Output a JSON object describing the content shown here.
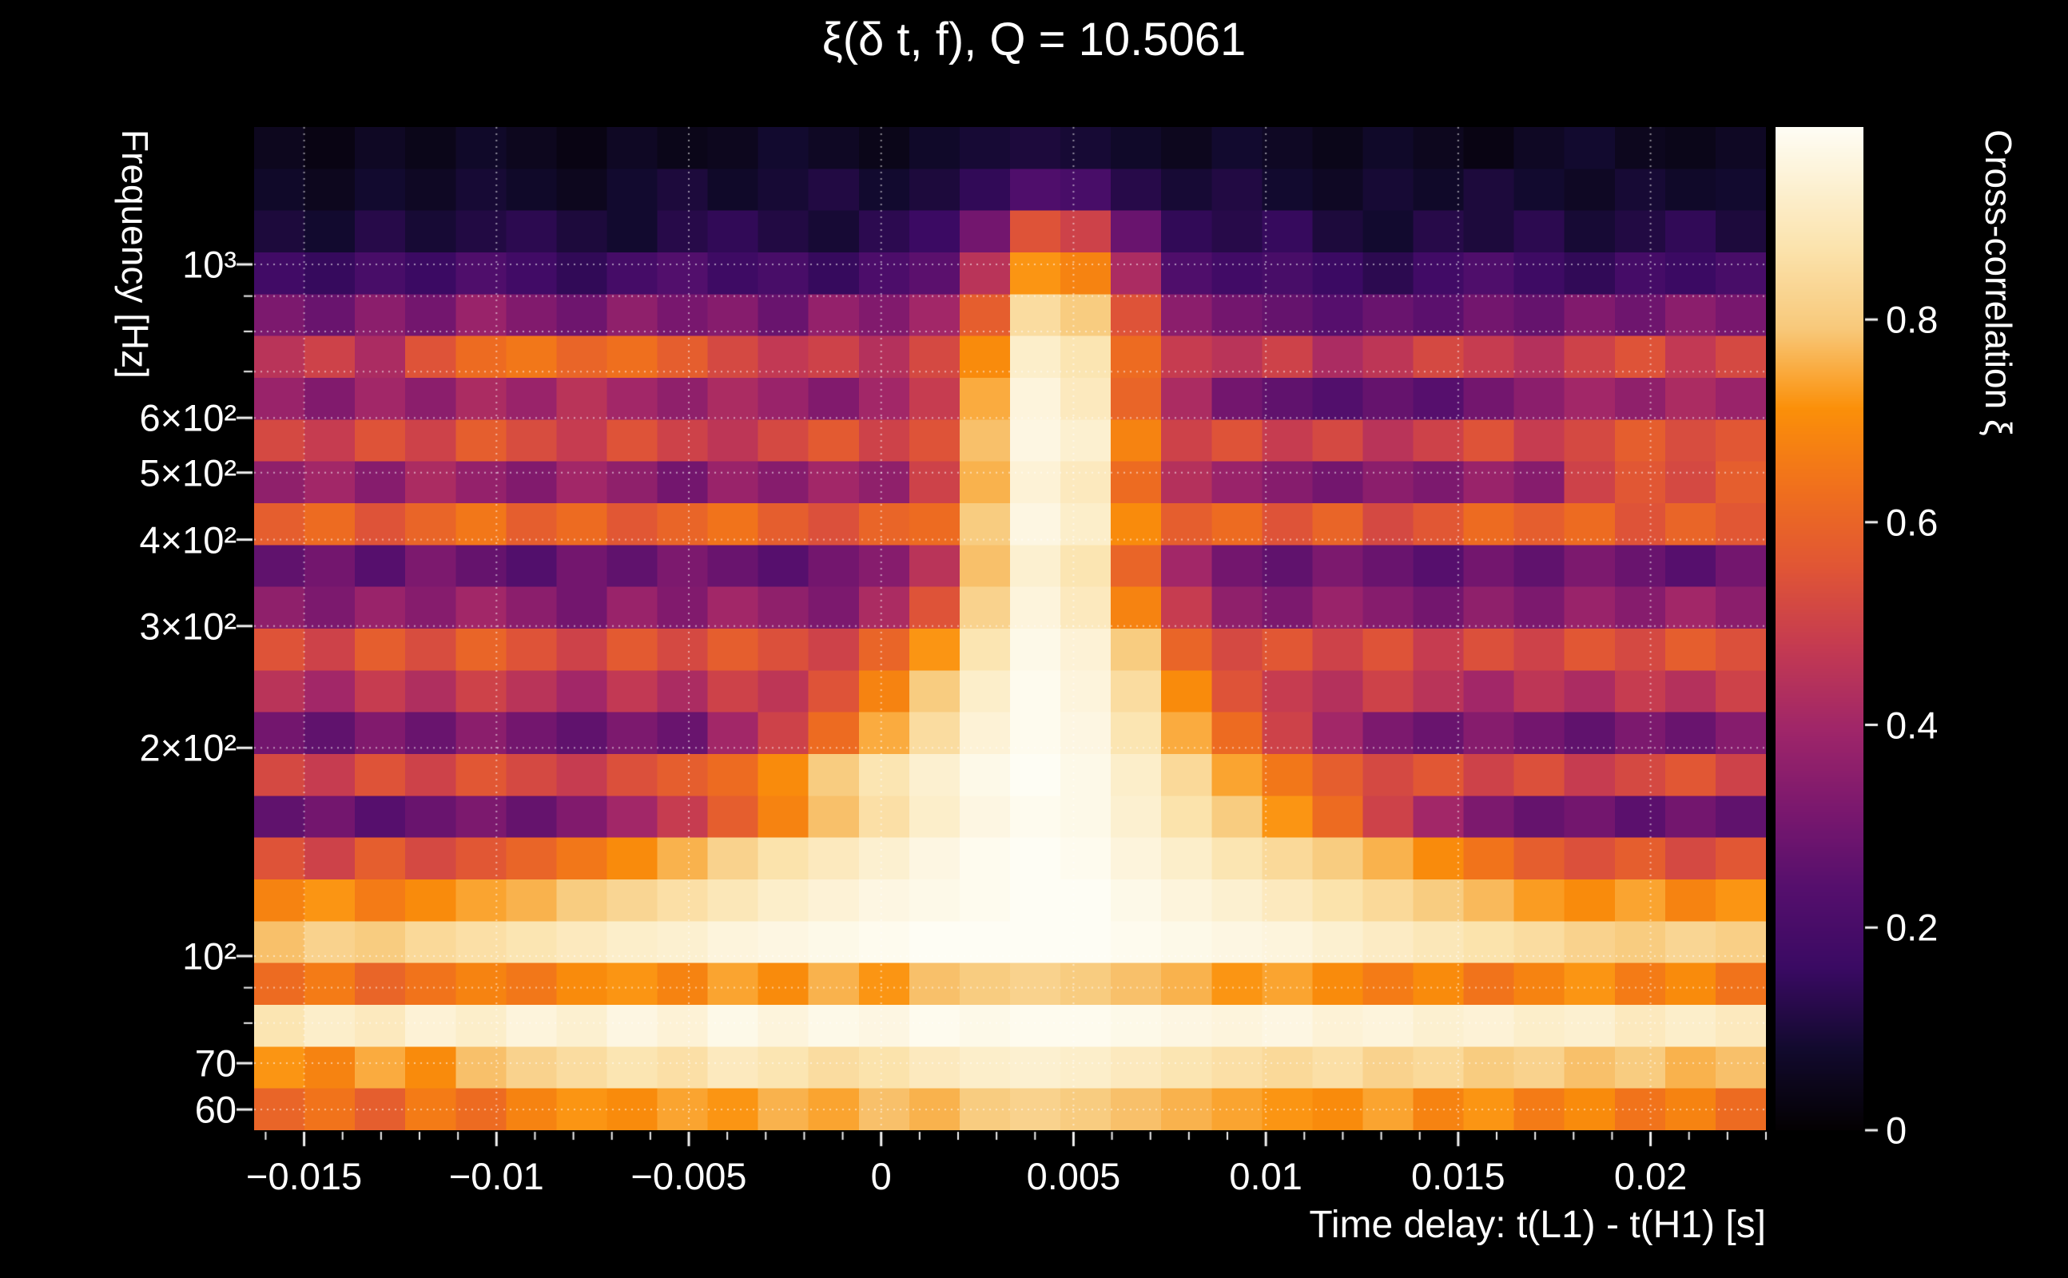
{
  "title": "ξ(δ t, f), Q = 10.5061",
  "colors": {
    "background": "#000000",
    "text": "#ffffff",
    "grid": "rgba(255,255,255,0.55)"
  },
  "axes": {
    "x": {
      "label": "Time delay: t(L1) - t(H1) [s]",
      "min": -0.0163,
      "max": 0.023,
      "minor_step": 0.001,
      "ticks": [
        {
          "v": -0.015,
          "label": "−0.015"
        },
        {
          "v": -0.01,
          "label": "−0.01"
        },
        {
          "v": -0.005,
          "label": "−0.005"
        },
        {
          "v": 0,
          "label": "0"
        },
        {
          "v": 0.005,
          "label": "0.005"
        },
        {
          "v": 0.01,
          "label": "0.01"
        },
        {
          "v": 0.015,
          "label": "0.015"
        },
        {
          "v": 0.02,
          "label": "0.02"
        }
      ]
    },
    "y": {
      "label": "Frequency [Hz]",
      "scale": "log",
      "min": 56,
      "max": 1580,
      "ticks": [
        {
          "v": 1000,
          "label": "10³"
        },
        {
          "v": 900,
          "label": ""
        },
        {
          "v": 800,
          "label": ""
        },
        {
          "v": 700,
          "label": ""
        },
        {
          "v": 600,
          "label": "6×10²"
        },
        {
          "v": 500,
          "label": "5×10²"
        },
        {
          "v": 400,
          "label": "4×10²"
        },
        {
          "v": 300,
          "label": "3×10²"
        },
        {
          "v": 200,
          "label": "2×10²"
        },
        {
          "v": 100,
          "label": "10²"
        },
        {
          "v": 90,
          "label": ""
        },
        {
          "v": 80,
          "label": ""
        },
        {
          "v": 70,
          "label": "70"
        },
        {
          "v": 60,
          "label": "60"
        }
      ]
    }
  },
  "colorbar": {
    "label": "Cross-correlation ξ",
    "min": 0,
    "max": 0.99,
    "ticks": [
      {
        "v": 0,
        "label": "0"
      },
      {
        "v": 0.2,
        "label": "0.2"
      },
      {
        "v": 0.4,
        "label": "0.4"
      },
      {
        "v": 0.6,
        "label": "0.6"
      },
      {
        "v": 0.8,
        "label": "0.8"
      }
    ]
  },
  "colormap": [
    [
      0.0,
      "#040103"
    ],
    [
      0.08,
      "#120a2e"
    ],
    [
      0.16,
      "#3a0a63"
    ],
    [
      0.24,
      "#550f6d"
    ],
    [
      0.32,
      "#7b186e"
    ],
    [
      0.4,
      "#a02669"
    ],
    [
      0.48,
      "#c43a52"
    ],
    [
      0.56,
      "#e05536"
    ],
    [
      0.64,
      "#f0701d"
    ],
    [
      0.72,
      "#fb9009"
    ],
    [
      0.8,
      "#f8c97b"
    ],
    [
      0.88,
      "#fbe3ad"
    ],
    [
      1.0,
      "#fefdf4"
    ]
  ],
  "chart_data": {
    "type": "heatmap",
    "title": "ξ(δ t, f), Q = 10.5061",
    "q_value": 10.5061,
    "xlabel": "Time delay: t(L1) - t(H1) [s]",
    "ylabel": "Frequency [Hz]",
    "zlabel": "Cross-correlation ξ",
    "x_range": [
      -0.0163,
      0.023
    ],
    "y_range": [
      56,
      1580
    ],
    "y_scale": "log",
    "z_range": [
      0,
      0.99
    ],
    "rows": 24,
    "cols": 30,
    "row_order": "top-to-bottom (high frequency first, log-spaced 1580→56 Hz)",
    "col_order": "left-to-right (time delay -0.0163 s → 0.023 s)",
    "values": [
      [
        0.05,
        0.03,
        0.06,
        0.04,
        0.07,
        0.05,
        0.03,
        0.06,
        0.04,
        0.05,
        0.08,
        0.06,
        0.04,
        0.07,
        0.09,
        0.1,
        0.09,
        0.07,
        0.05,
        0.08,
        0.06,
        0.04,
        0.07,
        0.05,
        0.03,
        0.06,
        0.08,
        0.05,
        0.04,
        0.06
      ],
      [
        0.07,
        0.05,
        0.08,
        0.06,
        0.09,
        0.07,
        0.05,
        0.08,
        0.1,
        0.07,
        0.09,
        0.11,
        0.08,
        0.1,
        0.14,
        0.22,
        0.2,
        0.12,
        0.09,
        0.11,
        0.08,
        0.06,
        0.09,
        0.07,
        0.1,
        0.08,
        0.06,
        0.09,
        0.07,
        0.08
      ],
      [
        0.1,
        0.08,
        0.12,
        0.09,
        0.11,
        0.13,
        0.1,
        0.08,
        0.12,
        0.14,
        0.11,
        0.09,
        0.13,
        0.16,
        0.3,
        0.55,
        0.5,
        0.28,
        0.14,
        0.12,
        0.15,
        0.1,
        0.08,
        0.12,
        0.1,
        0.13,
        0.09,
        0.11,
        0.14,
        0.1
      ],
      [
        0.18,
        0.15,
        0.2,
        0.16,
        0.22,
        0.18,
        0.14,
        0.19,
        0.23,
        0.17,
        0.2,
        0.15,
        0.21,
        0.25,
        0.45,
        0.72,
        0.68,
        0.42,
        0.22,
        0.18,
        0.2,
        0.16,
        0.13,
        0.18,
        0.22,
        0.17,
        0.14,
        0.19,
        0.16,
        0.2
      ],
      [
        0.32,
        0.28,
        0.35,
        0.3,
        0.38,
        0.33,
        0.29,
        0.36,
        0.31,
        0.34,
        0.28,
        0.37,
        0.33,
        0.4,
        0.58,
        0.85,
        0.8,
        0.55,
        0.35,
        0.3,
        0.27,
        0.24,
        0.28,
        0.25,
        0.3,
        0.27,
        0.33,
        0.29,
        0.35,
        0.31
      ],
      [
        0.45,
        0.5,
        0.42,
        0.55,
        0.62,
        0.65,
        0.6,
        0.63,
        0.58,
        0.52,
        0.47,
        0.5,
        0.44,
        0.52,
        0.7,
        0.92,
        0.88,
        0.62,
        0.48,
        0.45,
        0.5,
        0.42,
        0.46,
        0.52,
        0.48,
        0.44,
        0.5,
        0.55,
        0.47,
        0.52
      ],
      [
        0.38,
        0.33,
        0.4,
        0.35,
        0.42,
        0.38,
        0.45,
        0.4,
        0.36,
        0.42,
        0.38,
        0.33,
        0.4,
        0.48,
        0.75,
        0.95,
        0.9,
        0.6,
        0.42,
        0.3,
        0.26,
        0.23,
        0.27,
        0.24,
        0.3,
        0.35,
        0.4,
        0.36,
        0.42,
        0.38
      ],
      [
        0.52,
        0.48,
        0.55,
        0.5,
        0.58,
        0.53,
        0.48,
        0.55,
        0.5,
        0.46,
        0.52,
        0.57,
        0.5,
        0.55,
        0.78,
        0.96,
        0.93,
        0.68,
        0.5,
        0.55,
        0.48,
        0.52,
        0.45,
        0.5,
        0.55,
        0.48,
        0.52,
        0.58,
        0.53,
        0.56
      ],
      [
        0.36,
        0.4,
        0.34,
        0.42,
        0.37,
        0.33,
        0.4,
        0.36,
        0.3,
        0.38,
        0.34,
        0.4,
        0.36,
        0.5,
        0.76,
        0.94,
        0.9,
        0.62,
        0.44,
        0.38,
        0.34,
        0.3,
        0.35,
        0.32,
        0.38,
        0.34,
        0.5,
        0.56,
        0.52,
        0.58
      ],
      [
        0.58,
        0.62,
        0.55,
        0.6,
        0.65,
        0.58,
        0.62,
        0.56,
        0.6,
        0.64,
        0.58,
        0.54,
        0.6,
        0.62,
        0.8,
        0.96,
        0.92,
        0.7,
        0.58,
        0.62,
        0.55,
        0.6,
        0.52,
        0.56,
        0.62,
        0.58,
        0.62,
        0.55,
        0.6,
        0.56
      ],
      [
        0.26,
        0.3,
        0.24,
        0.32,
        0.27,
        0.23,
        0.3,
        0.26,
        0.32,
        0.28,
        0.24,
        0.3,
        0.34,
        0.45,
        0.78,
        0.93,
        0.88,
        0.6,
        0.4,
        0.3,
        0.26,
        0.32,
        0.28,
        0.24,
        0.3,
        0.26,
        0.32,
        0.28,
        0.24,
        0.3
      ],
      [
        0.36,
        0.32,
        0.38,
        0.34,
        0.4,
        0.35,
        0.3,
        0.38,
        0.33,
        0.4,
        0.36,
        0.32,
        0.42,
        0.55,
        0.82,
        0.95,
        0.9,
        0.68,
        0.48,
        0.36,
        0.32,
        0.38,
        0.34,
        0.3,
        0.36,
        0.32,
        0.38,
        0.34,
        0.4,
        0.35
      ],
      [
        0.55,
        0.5,
        0.58,
        0.53,
        0.6,
        0.55,
        0.5,
        0.57,
        0.52,
        0.58,
        0.54,
        0.5,
        0.6,
        0.72,
        0.88,
        0.97,
        0.94,
        0.8,
        0.6,
        0.52,
        0.56,
        0.5,
        0.55,
        0.48,
        0.54,
        0.5,
        0.56,
        0.52,
        0.58,
        0.54
      ],
      [
        0.45,
        0.4,
        0.48,
        0.43,
        0.5,
        0.45,
        0.4,
        0.47,
        0.42,
        0.5,
        0.46,
        0.55,
        0.68,
        0.8,
        0.92,
        0.98,
        0.95,
        0.85,
        0.7,
        0.55,
        0.48,
        0.44,
        0.5,
        0.45,
        0.4,
        0.46,
        0.42,
        0.48,
        0.44,
        0.5
      ],
      [
        0.3,
        0.26,
        0.33,
        0.28,
        0.35,
        0.3,
        0.26,
        0.32,
        0.28,
        0.4,
        0.5,
        0.62,
        0.75,
        0.85,
        0.94,
        0.98,
        0.96,
        0.88,
        0.75,
        0.62,
        0.5,
        0.4,
        0.32,
        0.28,
        0.34,
        0.3,
        0.26,
        0.32,
        0.28,
        0.34
      ],
      [
        0.52,
        0.48,
        0.55,
        0.5,
        0.56,
        0.52,
        0.48,
        0.54,
        0.58,
        0.62,
        0.7,
        0.8,
        0.88,
        0.93,
        0.97,
        0.99,
        0.97,
        0.92,
        0.84,
        0.74,
        0.65,
        0.58,
        0.52,
        0.56,
        0.5,
        0.54,
        0.48,
        0.52,
        0.56,
        0.5
      ],
      [
        0.26,
        0.3,
        0.24,
        0.28,
        0.32,
        0.27,
        0.33,
        0.4,
        0.48,
        0.58,
        0.68,
        0.78,
        0.86,
        0.92,
        0.96,
        0.98,
        0.97,
        0.93,
        0.87,
        0.8,
        0.72,
        0.62,
        0.5,
        0.4,
        0.32,
        0.27,
        0.3,
        0.25,
        0.3,
        0.26
      ],
      [
        0.55,
        0.5,
        0.58,
        0.52,
        0.56,
        0.6,
        0.65,
        0.7,
        0.76,
        0.82,
        0.87,
        0.9,
        0.93,
        0.96,
        0.98,
        0.99,
        0.98,
        0.95,
        0.92,
        0.88,
        0.84,
        0.8,
        0.76,
        0.7,
        0.64,
        0.58,
        0.54,
        0.58,
        0.52,
        0.56
      ],
      [
        0.68,
        0.72,
        0.66,
        0.7,
        0.74,
        0.76,
        0.8,
        0.83,
        0.86,
        0.89,
        0.92,
        0.94,
        0.96,
        0.97,
        0.98,
        0.99,
        0.99,
        0.97,
        0.95,
        0.93,
        0.9,
        0.87,
        0.84,
        0.8,
        0.77,
        0.73,
        0.7,
        0.74,
        0.68,
        0.72
      ],
      [
        0.78,
        0.82,
        0.8,
        0.84,
        0.86,
        0.88,
        0.9,
        0.92,
        0.93,
        0.95,
        0.96,
        0.97,
        0.98,
        0.99,
        0.99,
        0.99,
        0.99,
        0.98,
        0.97,
        0.96,
        0.95,
        0.93,
        0.91,
        0.89,
        0.87,
        0.85,
        0.82,
        0.8,
        0.83,
        0.81
      ],
      [
        0.62,
        0.66,
        0.6,
        0.64,
        0.68,
        0.65,
        0.7,
        0.72,
        0.68,
        0.74,
        0.7,
        0.76,
        0.72,
        0.78,
        0.8,
        0.82,
        0.8,
        0.78,
        0.76,
        0.72,
        0.74,
        0.7,
        0.66,
        0.7,
        0.64,
        0.68,
        0.72,
        0.66,
        0.7,
        0.64
      ],
      [
        0.88,
        0.92,
        0.9,
        0.94,
        0.92,
        0.95,
        0.93,
        0.96,
        0.94,
        0.97,
        0.95,
        0.97,
        0.96,
        0.98,
        0.97,
        0.98,
        0.98,
        0.97,
        0.96,
        0.95,
        0.96,
        0.94,
        0.95,
        0.93,
        0.94,
        0.92,
        0.93,
        0.9,
        0.92,
        0.9
      ],
      [
        0.72,
        0.68,
        0.75,
        0.7,
        0.78,
        0.82,
        0.85,
        0.88,
        0.86,
        0.9,
        0.88,
        0.85,
        0.87,
        0.9,
        0.92,
        0.93,
        0.92,
        0.9,
        0.88,
        0.86,
        0.84,
        0.86,
        0.82,
        0.84,
        0.8,
        0.82,
        0.78,
        0.8,
        0.76,
        0.78
      ],
      [
        0.6,
        0.64,
        0.58,
        0.66,
        0.62,
        0.68,
        0.72,
        0.7,
        0.74,
        0.72,
        0.76,
        0.74,
        0.78,
        0.76,
        0.8,
        0.82,
        0.8,
        0.78,
        0.76,
        0.74,
        0.72,
        0.7,
        0.74,
        0.68,
        0.72,
        0.66,
        0.7,
        0.64,
        0.68,
        0.62
      ]
    ]
  }
}
